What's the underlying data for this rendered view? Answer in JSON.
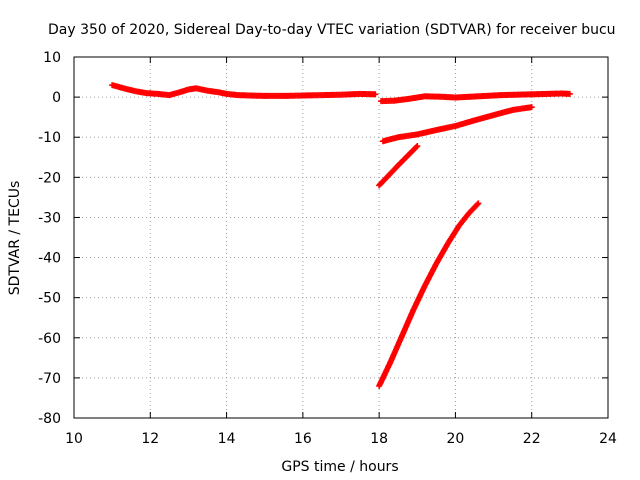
{
  "chart_data": {
    "type": "scatter",
    "title": "Day 350 of 2020, Sidereal Day-to-day VTEC variation (SDTVAR) for receiver bucu",
    "xlabel": "GPS time / hours",
    "ylabel": "SDTVAR / TECUs",
    "xlim": [
      10,
      24
    ],
    "ylim": [
      -80,
      10
    ],
    "xticks": [
      10,
      12,
      14,
      16,
      18,
      20,
      22,
      24
    ],
    "yticks": [
      10,
      0,
      -10,
      -20,
      -30,
      -40,
      -50,
      -60,
      -70,
      -80
    ],
    "grid": true,
    "marker_color": "#ff0000",
    "series": [
      {
        "points": [
          [
            11.0,
            3.0
          ],
          [
            11.3,
            2.2
          ],
          [
            11.6,
            1.5
          ],
          [
            11.9,
            1.0
          ],
          [
            12.2,
            0.8
          ],
          [
            12.5,
            0.5
          ],
          [
            12.8,
            1.3
          ],
          [
            13.0,
            1.9
          ],
          [
            13.2,
            2.2
          ],
          [
            13.5,
            1.6
          ],
          [
            13.8,
            1.2
          ],
          [
            14.0,
            0.8
          ],
          [
            14.3,
            0.5
          ],
          [
            14.6,
            0.4
          ],
          [
            15.0,
            0.3
          ],
          [
            15.5,
            0.3
          ],
          [
            16.0,
            0.4
          ],
          [
            16.5,
            0.5
          ],
          [
            17.0,
            0.6
          ],
          [
            17.5,
            0.8
          ],
          [
            17.9,
            0.7
          ]
        ]
      },
      {
        "points": [
          [
            18.05,
            -1.0
          ],
          [
            18.4,
            -0.9
          ],
          [
            18.8,
            -0.4
          ],
          [
            19.2,
            0.2
          ],
          [
            19.6,
            0.1
          ],
          [
            20.0,
            -0.1
          ],
          [
            20.4,
            0.1
          ],
          [
            20.8,
            0.3
          ],
          [
            21.2,
            0.5
          ],
          [
            21.6,
            0.6
          ],
          [
            22.0,
            0.7
          ],
          [
            22.4,
            0.8
          ],
          [
            22.8,
            0.9
          ],
          [
            23.0,
            0.8
          ]
        ]
      },
      {
        "points": [
          [
            18.1,
            -11.0
          ],
          [
            18.5,
            -10.0
          ],
          [
            19.0,
            -9.3
          ],
          [
            19.5,
            -8.2
          ],
          [
            20.0,
            -7.2
          ],
          [
            20.5,
            -5.8
          ],
          [
            21.0,
            -4.5
          ],
          [
            21.5,
            -3.2
          ],
          [
            22.0,
            -2.5
          ]
        ]
      },
      {
        "points": [
          [
            18.0,
            -22.0
          ],
          [
            18.25,
            -19.5
          ],
          [
            18.5,
            -17.0
          ],
          [
            18.75,
            -14.6
          ],
          [
            19.0,
            -12.2
          ]
        ]
      },
      {
        "points": [
          [
            18.0,
            -72.0
          ],
          [
            18.3,
            -66.0
          ],
          [
            18.6,
            -59.5
          ],
          [
            18.9,
            -53.0
          ],
          [
            19.2,
            -47.0
          ],
          [
            19.5,
            -41.5
          ],
          [
            19.8,
            -36.5
          ],
          [
            20.1,
            -32.0
          ],
          [
            20.35,
            -29.0
          ],
          [
            20.6,
            -26.5
          ]
        ]
      }
    ]
  }
}
